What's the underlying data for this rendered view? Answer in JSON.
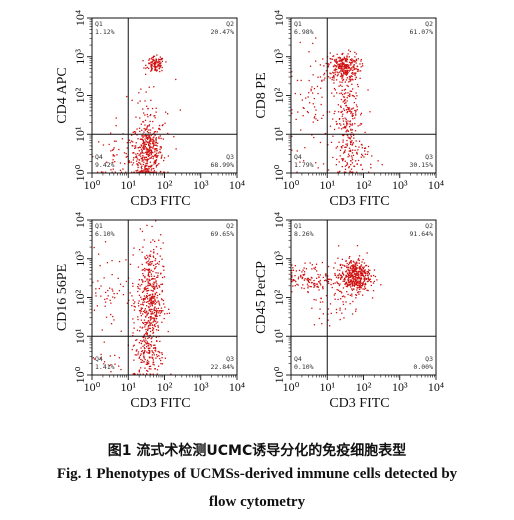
{
  "figure": {
    "caption_cn": "图1 流式术检测UCMC诱导分化的免疫细胞表型",
    "caption_en_line1": "Fig. 1  Phenotypes of UCMSs-derived immune cells detected by",
    "caption_en_line2": "flow cytometry"
  },
  "colors": {
    "dots": "#d01010",
    "axis": "#111111",
    "gate": "#111111"
  },
  "chart_data": [
    {
      "type": "scatter",
      "xlabel": "CD3 FITC",
      "ylabel": "CD4 APC",
      "xscale": "log",
      "yscale": "log",
      "xlim": [
        1,
        10000
      ],
      "ylim": [
        1,
        10000
      ],
      "x_ticks": [
        "10⁰",
        "10¹",
        "10²",
        "10³",
        "10⁴"
      ],
      "y_ticks": [
        "10⁰",
        "10¹",
        "10²",
        "10³",
        "10⁴"
      ],
      "gate": {
        "x": 10,
        "y": 10
      },
      "quadrants": [
        {
          "name": "Q1",
          "value": "1.12%",
          "pos": "top-left"
        },
        {
          "name": "Q2",
          "value": "20.47%",
          "pos": "top-right"
        },
        {
          "name": "Q3",
          "value": "68.99%",
          "pos": "bottom-right"
        },
        {
          "name": "Q4",
          "value": "9.42%",
          "pos": "bottom-left"
        }
      ],
      "clusters": [
        {
          "cx": 1.55,
          "cy": 0.55,
          "sx": 0.2,
          "sy": 0.4,
          "n": 380
        },
        {
          "cx": 1.75,
          "cy": 2.8,
          "sx": 0.12,
          "sy": 0.1,
          "n": 110
        },
        {
          "cx": 0.9,
          "cy": 0.4,
          "sx": 0.45,
          "sy": 0.28,
          "n": 70
        },
        {
          "cx": 1.5,
          "cy": 1.4,
          "sx": 0.4,
          "sy": 0.5,
          "n": 40
        }
      ]
    },
    {
      "type": "scatter",
      "xlabel": "CD3 FITC",
      "ylabel": "CD8 PE",
      "xscale": "log",
      "yscale": "log",
      "xlim": [
        1,
        10000
      ],
      "ylim": [
        1,
        10000
      ],
      "x_ticks": [
        "10⁰",
        "10¹",
        "10²",
        "10³",
        "10⁴"
      ],
      "y_ticks": [
        "10⁰",
        "10¹",
        "10²",
        "10³",
        "10⁴"
      ],
      "gate": {
        "x": 10,
        "y": 10
      },
      "quadrants": [
        {
          "name": "Q1",
          "value": "6.98%",
          "pos": "top-left"
        },
        {
          "name": "Q2",
          "value": "61.07%",
          "pos": "top-right"
        },
        {
          "name": "Q3",
          "value": "30.15%",
          "pos": "bottom-right"
        },
        {
          "name": "Q4",
          "value": "1.79%",
          "pos": "bottom-left"
        }
      ],
      "clusters": [
        {
          "cx": 1.45,
          "cy": 2.75,
          "sx": 0.22,
          "sy": 0.18,
          "n": 260
        },
        {
          "cx": 1.6,
          "cy": 1.3,
          "sx": 0.2,
          "sy": 0.7,
          "n": 230
        },
        {
          "cx": 0.8,
          "cy": 1.8,
          "sx": 0.5,
          "sy": 0.7,
          "n": 110
        },
        {
          "cx": 1.7,
          "cy": 0.4,
          "sx": 0.3,
          "sy": 0.25,
          "n": 60
        }
      ]
    },
    {
      "type": "scatter",
      "xlabel": "CD3 FITC",
      "ylabel": "CD16 56PE",
      "xscale": "log",
      "yscale": "log",
      "xlim": [
        1,
        10000
      ],
      "ylim": [
        1,
        10000
      ],
      "x_ticks": [
        "10⁰",
        "10¹",
        "10²",
        "10³",
        "10⁴"
      ],
      "y_ticks": [
        "10⁰",
        "10¹",
        "10²",
        "10³",
        "10⁴"
      ],
      "gate": {
        "x": 10,
        "y": 10
      },
      "quadrants": [
        {
          "name": "Q1",
          "value": "6.10%",
          "pos": "top-left"
        },
        {
          "name": "Q2",
          "value": "69.65%",
          "pos": "top-right"
        },
        {
          "name": "Q3",
          "value": "22.84%",
          "pos": "bottom-right"
        },
        {
          "name": "Q4",
          "value": "1.41%",
          "pos": "bottom-left"
        }
      ],
      "clusters": [
        {
          "cx": 1.6,
          "cy": 1.9,
          "sx": 0.18,
          "sy": 0.75,
          "n": 470
        },
        {
          "cx": 1.55,
          "cy": 0.5,
          "sx": 0.22,
          "sy": 0.3,
          "n": 120
        },
        {
          "cx": 0.55,
          "cy": 2.2,
          "sx": 0.35,
          "sy": 0.5,
          "n": 60
        },
        {
          "cx": 0.4,
          "cy": 0.35,
          "sx": 0.25,
          "sy": 0.2,
          "n": 15
        }
      ]
    },
    {
      "type": "scatter",
      "xlabel": "CD3 FITC",
      "ylabel": "CD45 PerCP",
      "xscale": "log",
      "yscale": "log",
      "xlim": [
        1,
        10000
      ],
      "ylim": [
        1,
        10000
      ],
      "x_ticks": [
        "10⁰",
        "10¹",
        "10²",
        "10³",
        "10⁴"
      ],
      "y_ticks": [
        "10⁰",
        "10¹",
        "10²",
        "10³",
        "10⁴"
      ],
      "gate": {
        "x": 10,
        "y": 10
      },
      "quadrants": [
        {
          "name": "Q1",
          "value": "8.26%",
          "pos": "top-left"
        },
        {
          "name": "Q2",
          "value": "91.64%",
          "pos": "top-right"
        },
        {
          "name": "Q3",
          "value": "0.00%",
          "pos": "bottom-right"
        },
        {
          "name": "Q4",
          "value": "0.10%",
          "pos": "bottom-left"
        }
      ],
      "clusters": [
        {
          "cx": 1.75,
          "cy": 2.55,
          "sx": 0.22,
          "sy": 0.22,
          "n": 430
        },
        {
          "cx": 0.6,
          "cy": 2.5,
          "sx": 0.4,
          "sy": 0.18,
          "n": 130
        },
        {
          "cx": 1.2,
          "cy": 1.9,
          "sx": 0.35,
          "sy": 0.35,
          "n": 50
        }
      ]
    }
  ]
}
